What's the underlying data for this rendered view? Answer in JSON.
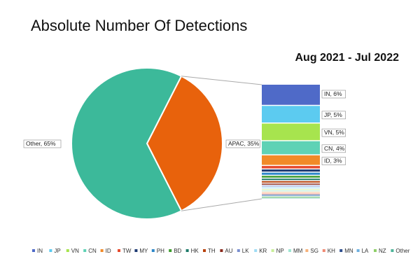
{
  "chart_data": {
    "type": "pie",
    "title": "Absolute Number Of Detections",
    "subtitle": "Aug 2021 - Jul 2022",
    "pie": {
      "slices": [
        {
          "name": "Other",
          "value": 65,
          "label": "Other, 65%",
          "color": "#3cb99a"
        },
        {
          "name": "APAC",
          "value": 35,
          "label": "APAC, 35%",
          "color": "#e8620c"
        }
      ]
    },
    "bar_of_pie": {
      "segments": [
        {
          "name": "IN",
          "value": 6,
          "label": "IN, 6%",
          "color": "#4f6ac8"
        },
        {
          "name": "JP",
          "value": 5,
          "label": "JP, 5%",
          "color": "#5ccbf0"
        },
        {
          "name": "VN",
          "value": 5,
          "label": "VN, 5%",
          "color": "#a7e44e"
        },
        {
          "name": "CN",
          "value": 4,
          "label": "CN, 4%",
          "color": "#5fd2b5"
        },
        {
          "name": "ID",
          "value": 3,
          "label": "ID, 3%",
          "color": "#f18a28"
        },
        {
          "name": "TW",
          "value": 1.0,
          "label": "",
          "color": "#e64a2e"
        },
        {
          "name": "MY",
          "value": 0.9,
          "label": "",
          "color": "#1f3b73"
        },
        {
          "name": "PH",
          "value": 0.9,
          "label": "",
          "color": "#2e88c9"
        },
        {
          "name": "BD",
          "value": 0.8,
          "label": "",
          "color": "#3e9e2f"
        },
        {
          "name": "HK",
          "value": 0.7,
          "label": "",
          "color": "#1e7b6a"
        },
        {
          "name": "TH",
          "value": 0.7,
          "label": "",
          "color": "#b8420c"
        },
        {
          "name": "AU",
          "value": 0.6,
          "label": "",
          "color": "#8a2a1e"
        },
        {
          "name": "LK",
          "value": 0.5,
          "label": "",
          "color": "#7a8fd0"
        },
        {
          "name": "KR",
          "value": 0.5,
          "label": "",
          "color": "#9fdcf5"
        },
        {
          "name": "NP",
          "value": 0.4,
          "label": "",
          "color": "#c9ef9a"
        },
        {
          "name": "MM",
          "value": 0.4,
          "label": "",
          "color": "#9ee6d3"
        },
        {
          "name": "SG",
          "value": 0.4,
          "label": "",
          "color": "#f6b27a"
        },
        {
          "name": "KH",
          "value": 0.3,
          "label": "",
          "color": "#f08a74"
        },
        {
          "name": "MN",
          "value": 0.3,
          "label": "",
          "color": "#2f4f8f"
        },
        {
          "name": "LA",
          "value": 0.3,
          "label": "",
          "color": "#6fb0e0"
        },
        {
          "name": "NZ",
          "value": 0.3,
          "label": "",
          "color": "#8fcf6a"
        },
        {
          "name": "Other",
          "value": 0.3,
          "label": "",
          "color": "#4fb59a"
        }
      ]
    },
    "legend": {
      "position": "bottom",
      "items": [
        "IN",
        "JP",
        "VN",
        "CN",
        "ID",
        "TW",
        "MY",
        "PH",
        "BD",
        "HK",
        "TH",
        "AU",
        "LK",
        "KR",
        "NP",
        "MM",
        "SG",
        "KH",
        "MN",
        "LA",
        "NZ",
        "Other"
      ]
    }
  }
}
